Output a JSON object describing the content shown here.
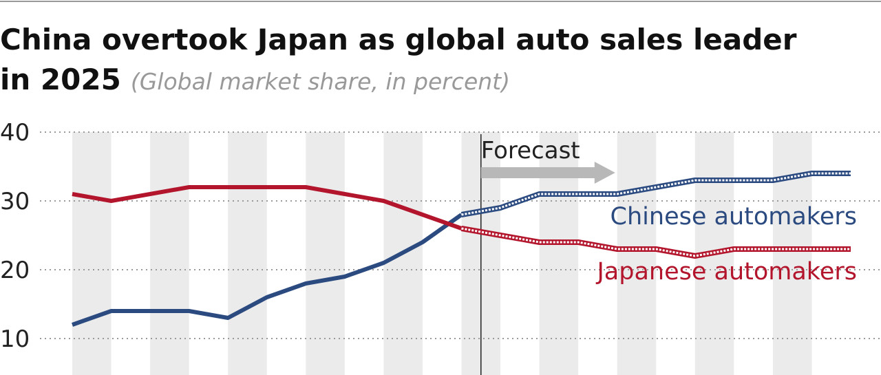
{
  "chart_data": {
    "type": "line",
    "title": "China overtook Japan as global auto sales leader in 2025",
    "subtitle": "(Global market share, in percent)",
    "categories": [
      null,
      null,
      null,
      null,
      null,
      null,
      null,
      null,
      null,
      null,
      null,
      null,
      null,
      null,
      null,
      null,
      null,
      null,
      null,
      null,
      null
    ],
    "series": [
      {
        "name": "Chinese automakers",
        "color": "#2b4a80",
        "values": [
          12,
          14,
          14,
          14,
          13,
          16,
          18,
          19,
          21,
          24,
          28,
          29,
          31,
          31,
          31,
          32,
          33,
          33,
          33,
          34,
          34
        ]
      },
      {
        "name": "Japanese automakers",
        "color": "#b3162c",
        "values": [
          31,
          30,
          31,
          32,
          32,
          32,
          32,
          31,
          30,
          28,
          26,
          25,
          24,
          24,
          23,
          23,
          22,
          23,
          23,
          23,
          23
        ]
      }
    ],
    "forecast": {
      "label": "Forecast",
      "start": 10.5
    },
    "ylim": [
      5,
      40
    ],
    "yticks": [
      10,
      20,
      30,
      40
    ],
    "grid": true
  }
}
